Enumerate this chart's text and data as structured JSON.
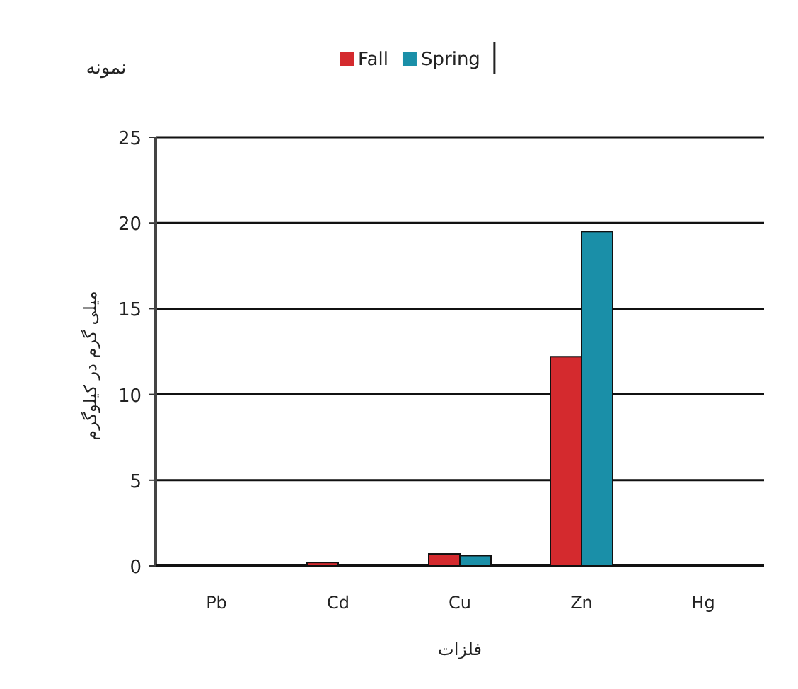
{
  "chart_data": {
    "type": "bar",
    "title": "نمونه",
    "xlabel": "فلزات",
    "ylabel": "میلی گرم در کیلوگرم",
    "categories": [
      "Pb",
      "Cd",
      "Cu",
      "Zn",
      "Hg"
    ],
    "series": [
      {
        "name": "Fall",
        "color": "#d42a2e",
        "values": [
          0,
          0.2,
          0.7,
          12.2,
          0
        ]
      },
      {
        "name": "Spring",
        "color": "#1a8fa8",
        "values": [
          0,
          0,
          0.6,
          19.5,
          0
        ]
      }
    ],
    "ylim": [
      0,
      25
    ],
    "yticks": [
      0,
      5,
      10,
      15,
      20,
      25
    ],
    "grid": "y",
    "legend": "top"
  }
}
